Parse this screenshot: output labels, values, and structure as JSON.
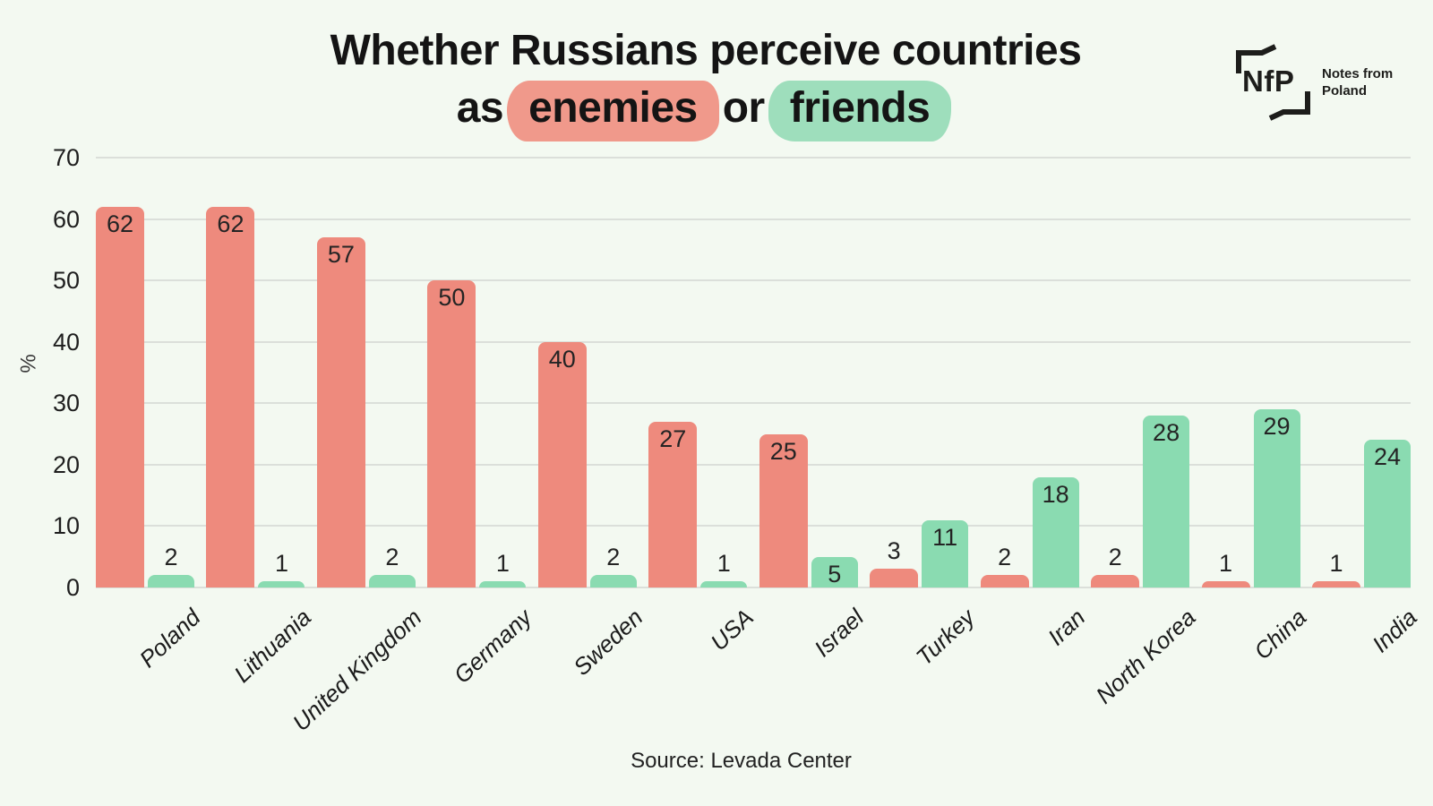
{
  "page": {
    "background": "#f3f9f1"
  },
  "title": {
    "line1": "Whether Russians perceive countries",
    "word_as": "as",
    "word_enemies": "enemies",
    "word_or": "or",
    "word_friends": "friends",
    "enemies_highlight_color": "#f0998b",
    "friends_highlight_color": "#9edebc",
    "text_color": "#141414"
  },
  "logo": {
    "abbr": "NfP",
    "name_line1": "Notes from",
    "name_line2": "Poland"
  },
  "source": "Source: Levada Center",
  "chart_data": {
    "type": "bar",
    "title": "Whether Russians perceive countries as enemies or friends",
    "categories": [
      "Poland",
      "Lithuania",
      "United Kingdom",
      "Germany",
      "Sweden",
      "USA",
      "Israel",
      "Turkey",
      "Iran",
      "North Korea",
      "China",
      "India"
    ],
    "series": [
      {
        "name": "enemies",
        "color": "#ee8a7d",
        "values": [
          62,
          62,
          57,
          50,
          40,
          27,
          25,
          3,
          2,
          2,
          1,
          1
        ]
      },
      {
        "name": "friends",
        "color": "#8adbb1",
        "values": [
          2,
          1,
          2,
          1,
          2,
          1,
          5,
          11,
          18,
          28,
          29,
          24
        ]
      }
    ],
    "xlabel": "",
    "ylabel": "%",
    "ylim": [
      0,
      70
    ],
    "yticks": [
      0,
      10,
      20,
      30,
      40,
      50,
      60,
      70
    ],
    "grid": true,
    "gridline_color": "#dbdfda",
    "value_labels": true,
    "value_label_inside_threshold": 5,
    "legend_position": "none"
  }
}
